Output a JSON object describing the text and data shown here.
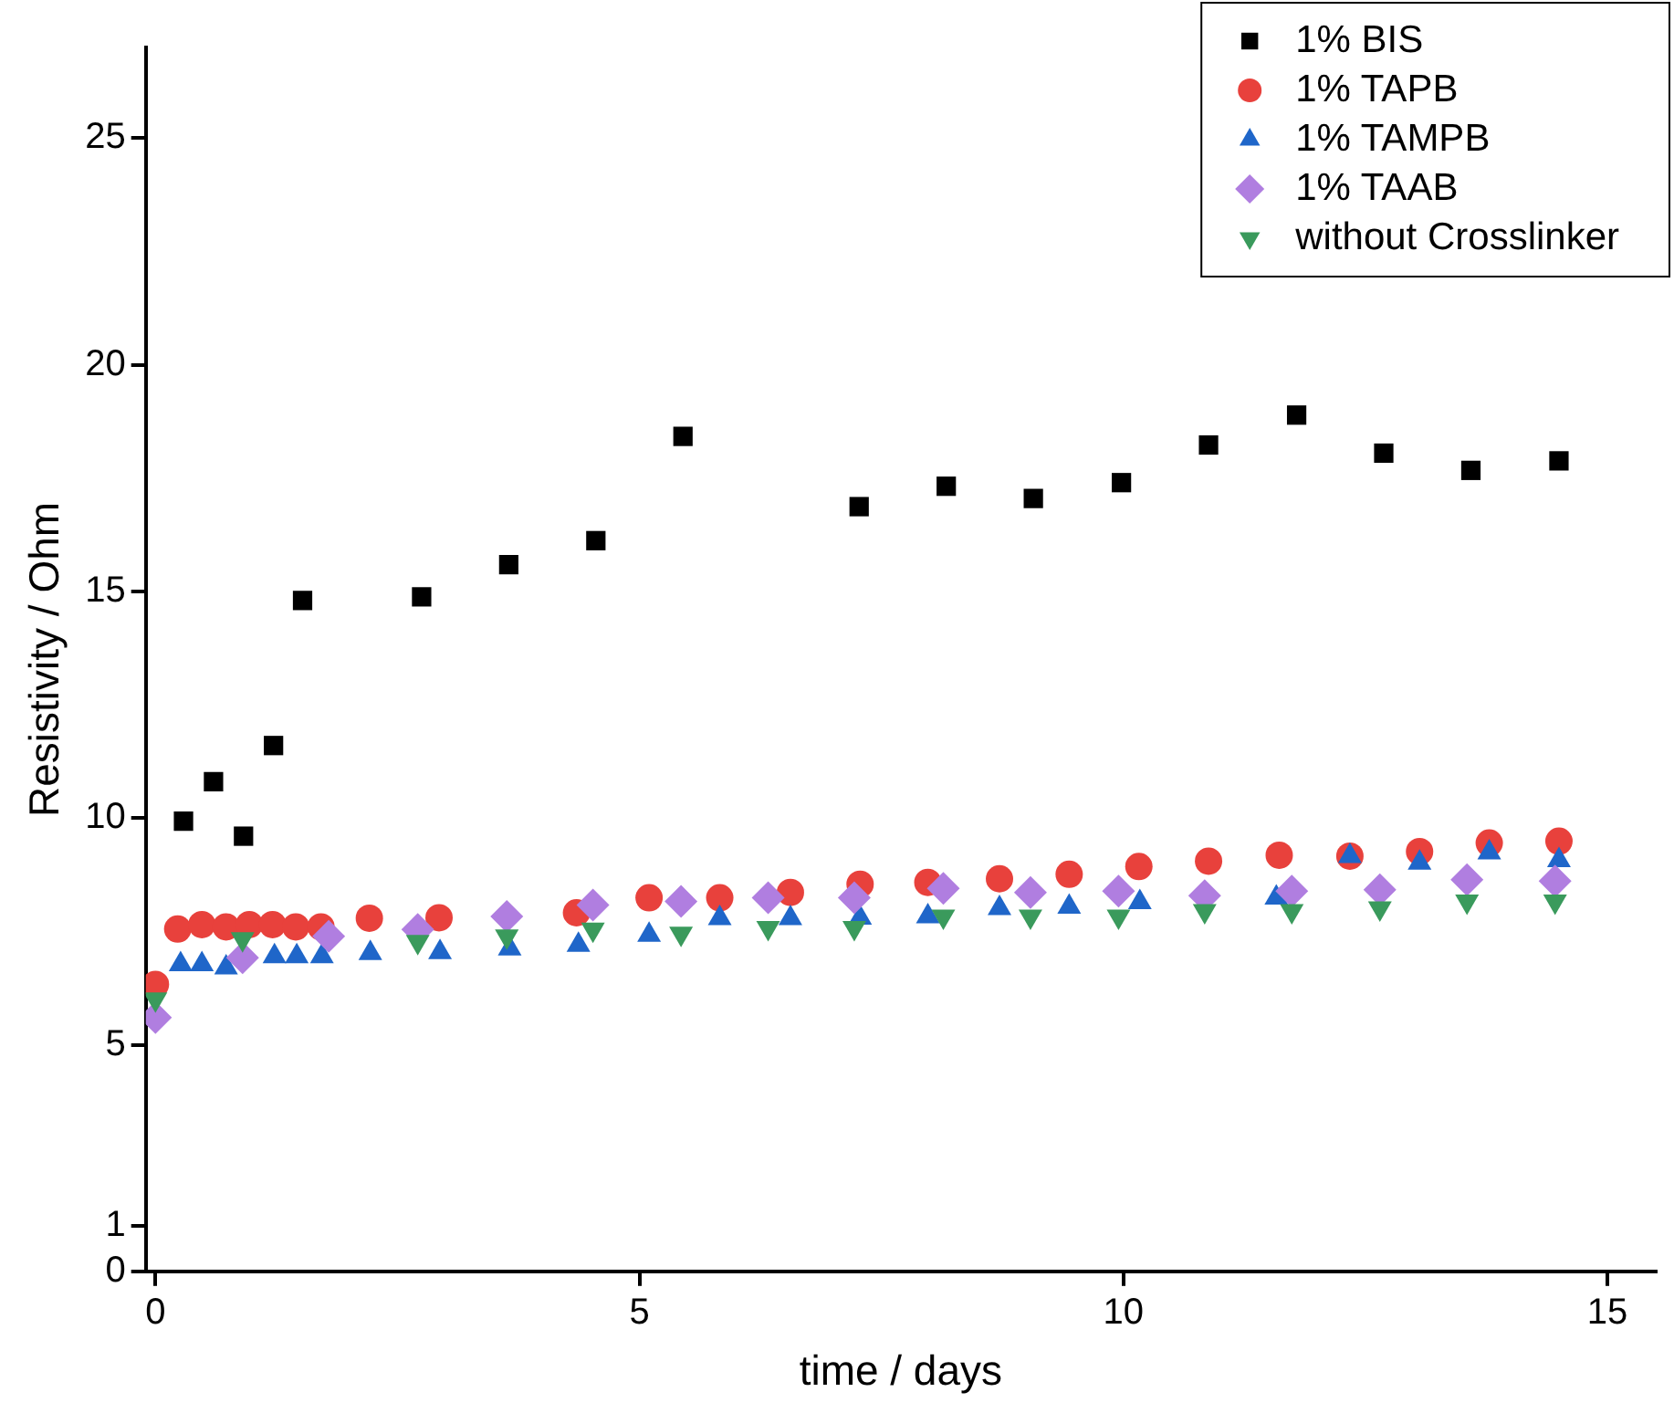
{
  "chart_data": {
    "type": "scatter",
    "xlabel": "time / days",
    "ylabel": "Resistivity / Ohm",
    "xlim": [
      -0.1,
      15.5
    ],
    "xticks": [
      0,
      5,
      10,
      15
    ],
    "ylim": [
      0,
      27
    ],
    "yticks": [
      0,
      1,
      5,
      10,
      15,
      20,
      25
    ],
    "grid": false,
    "legend": "top right",
    "series": [
      {
        "name": "1% BIS",
        "color": "#000000",
        "marker": "square",
        "x": [
          0.29,
          0.6,
          0.91,
          1.22,
          1.52,
          2.75,
          3.65,
          4.55,
          5.45,
          7.27,
          8.17,
          9.07,
          9.98,
          10.88,
          11.79,
          12.69,
          13.59,
          14.5
        ],
        "values": [
          9.93,
          10.8,
          9.6,
          11.6,
          14.8,
          14.88,
          15.59,
          16.12,
          18.42,
          16.87,
          17.32,
          17.05,
          17.4,
          18.23,
          18.89,
          18.05,
          17.67,
          17.88
        ]
      },
      {
        "name": "1% TAPB",
        "color": "#e8413c",
        "marker": "circle",
        "x": [
          0,
          0.23,
          0.48,
          0.73,
          0.97,
          1.21,
          1.45,
          1.71,
          2.21,
          2.93,
          3.66,
          4.35,
          5.1,
          5.83,
          6.56,
          7.28,
          7.98,
          8.72,
          9.44,
          10.16,
          10.88,
          11.61,
          12.34,
          13.06,
          13.78,
          14.5
        ],
        "values": [
          6.33,
          7.55,
          7.65,
          7.6,
          7.65,
          7.65,
          7.6,
          7.6,
          7.79,
          7.8,
          null,
          7.91,
          8.24,
          8.24,
          8.36,
          8.54,
          8.58,
          8.66,
          8.76,
          8.93,
          9.05,
          9.18,
          9.16,
          9.26,
          9.45,
          9.49
        ]
      },
      {
        "name": "1% TAMPB",
        "color": "#1f66c9",
        "marker": "triangle",
        "x": [
          0.26,
          0.48,
          0.73,
          1.23,
          1.46,
          1.72,
          2.22,
          2.94,
          3.66,
          4.37,
          5.1,
          5.83,
          6.56,
          7.28,
          7.98,
          8.72,
          9.44,
          10.17,
          10.88,
          11.58,
          12.34,
          13.06,
          13.78,
          14.5
        ],
        "values": [
          6.77,
          6.77,
          6.7,
          6.95,
          6.95,
          6.95,
          7.02,
          7.04,
          7.12,
          7.2,
          7.42,
          7.79,
          7.79,
          7.8,
          7.83,
          8.01,
          8.04,
          8.14,
          null,
          8.24,
          9.16,
          9.01,
          9.24,
          9.07
        ]
      },
      {
        "name": "1% TAAB",
        "color": "#b07ee0",
        "marker": "diamond",
        "x": [
          0,
          0.9,
          1.79,
          2.71,
          3.63,
          4.52,
          5.43,
          6.33,
          7.22,
          8.14,
          9.04,
          9.95,
          10.84,
          11.74,
          12.65,
          13.55,
          14.46
        ],
        "values": [
          5.6,
          6.92,
          7.39,
          7.54,
          7.83,
          8.08,
          8.16,
          8.24,
          8.24,
          8.45,
          8.36,
          8.39,
          8.29,
          8.39,
          8.42,
          8.64,
          8.61
        ]
      },
      {
        "name": "without Crosslinker",
        "color": "#3a9a5c",
        "marker": "triangle-down",
        "x": [
          0,
          0.9,
          2.71,
          3.63,
          4.52,
          5.43,
          6.33,
          7.22,
          8.14,
          9.04,
          9.95,
          10.84,
          11.74,
          12.65,
          13.55,
          14.46
        ],
        "values": [
          6.0,
          7.33,
          7.27,
          7.39,
          7.54,
          7.45,
          7.58,
          7.58,
          7.83,
          7.83,
          7.83,
          7.95,
          7.95,
          8.01,
          8.16,
          8.16
        ]
      }
    ]
  }
}
